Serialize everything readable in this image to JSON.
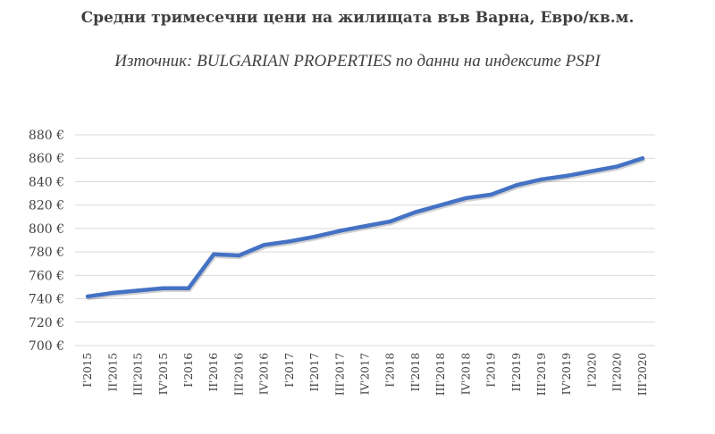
{
  "chart_data": {
    "type": "line",
    "title": "Средни тримесечни цени на жилищата във Варна, Евро/кв.м.",
    "subtitle": "Източник: BULGARIAN PROPERTIES по данни на индексите PSPI",
    "xlabel": "",
    "ylabel": "",
    "ylim": [
      700,
      880
    ],
    "ytick_step": 20,
    "y_unit": "€",
    "grid": true,
    "color": "#4472C4",
    "categories": [
      "I'2015",
      "II'2015",
      "III'2015",
      "IV'2015",
      "I'2016",
      "II'2016",
      "III'2016",
      "IV'2016",
      "I'2017",
      "II'2017",
      "III'2017",
      "IV'2017",
      "I'2018",
      "II'2018",
      "III'2018",
      "IV'2018",
      "I'2019",
      "II'2019",
      "III'2019",
      "IV'2019",
      "I'2020",
      "II'2020",
      "III'2020"
    ],
    "values": [
      742,
      745,
      747,
      749,
      749,
      778,
      777,
      786,
      789,
      793,
      798,
      802,
      806,
      814,
      820,
      826,
      829,
      837,
      842,
      845,
      849,
      853,
      860
    ]
  }
}
